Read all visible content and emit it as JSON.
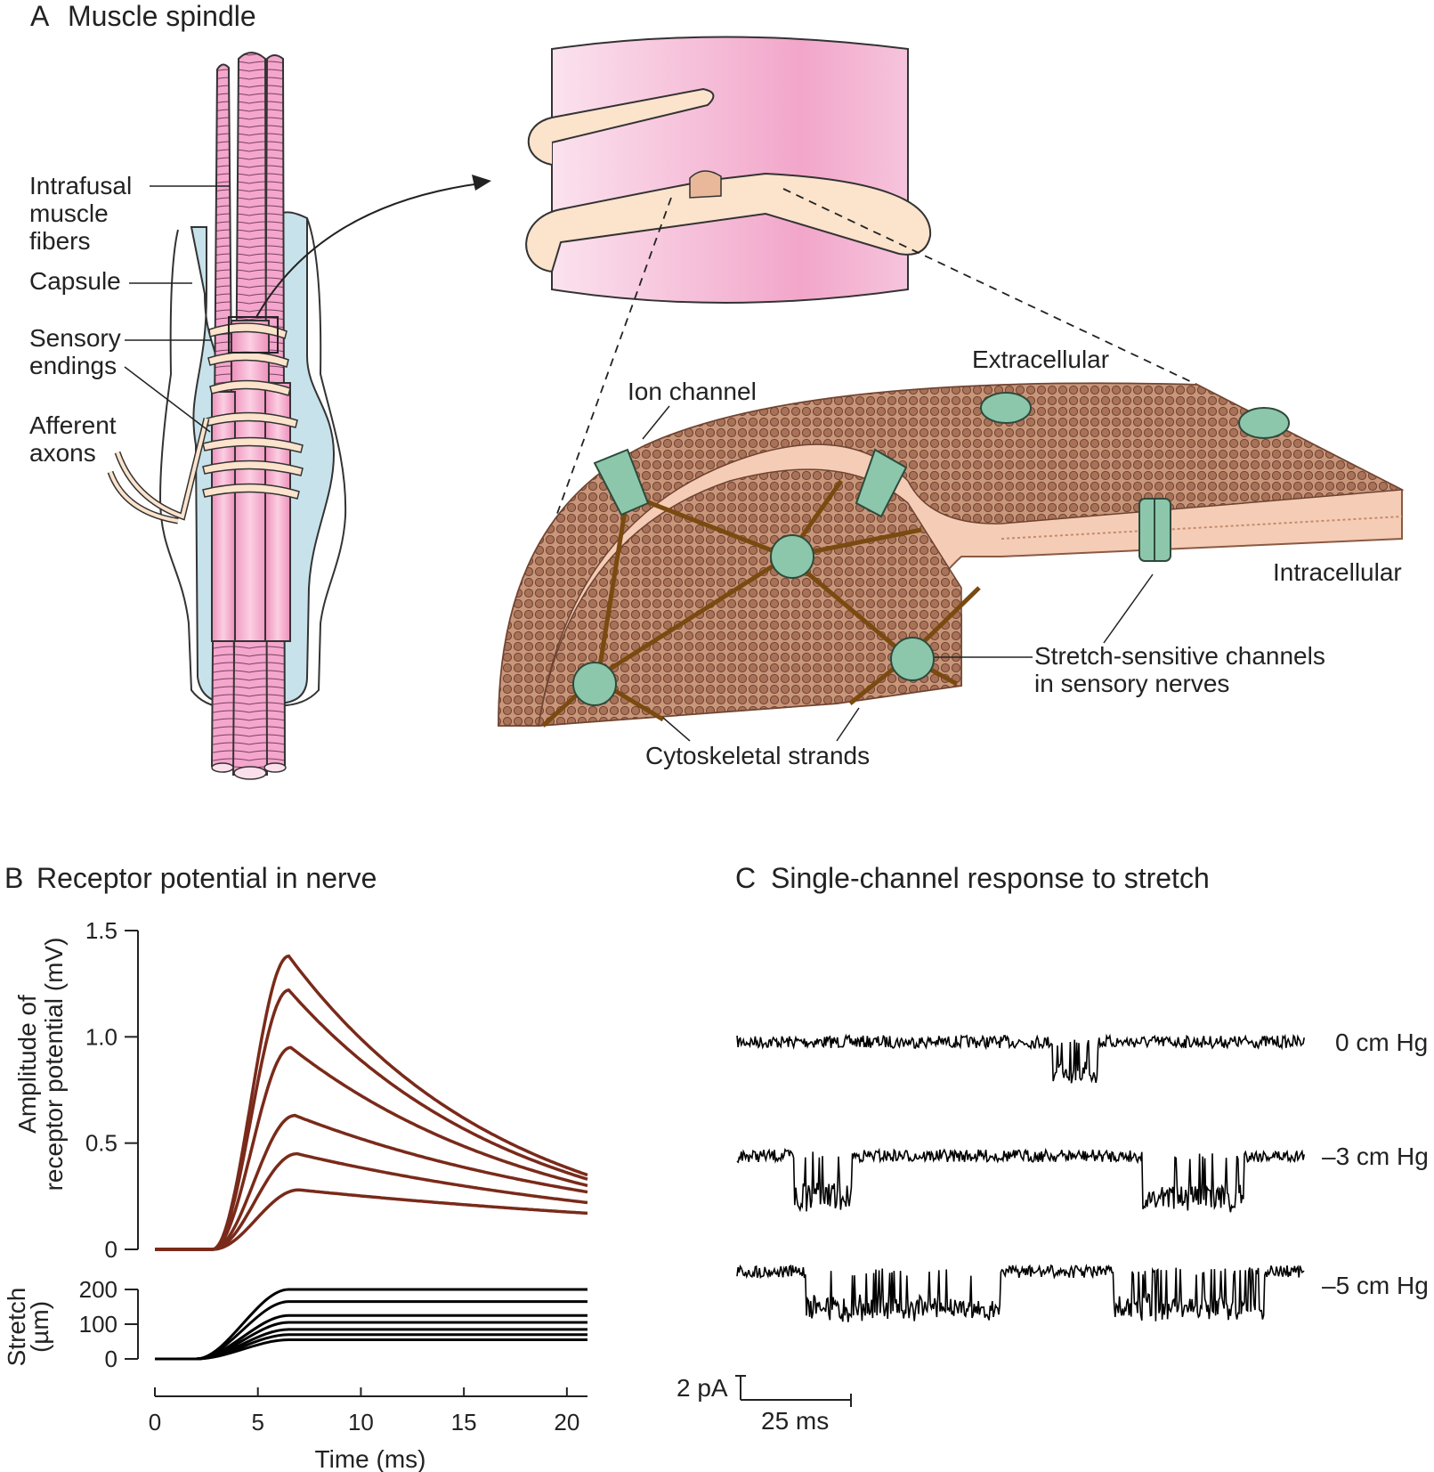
{
  "panelA": {
    "letter": "A",
    "title": "Muscle spindle",
    "labels": {
      "intrafusal_1": "Intrafusal",
      "intrafusal_2": "muscle",
      "intrafusal_3": "fibers",
      "capsule": "Capsule",
      "sensory_1": "Sensory",
      "sensory_2": "endings",
      "afferent_1": "Afferent",
      "afferent_2": "axons",
      "extracellular": "Extracellular",
      "ion_channel": "Ion channel",
      "intracellular": "Intracellular",
      "stretch_channels_1": "Stretch-sensitive channels",
      "stretch_channels_2": "in sensory nerves",
      "cytoskeletal": "Cytoskeletal strands"
    },
    "colors": {
      "muscle_pink": "#f4a6cc",
      "capsule_blue": "#c7e2ea",
      "sensory_cream": "#fbe3cc",
      "channel_green": "#8cc7ab",
      "membrane_tan": "#c9967a",
      "cytoskeleton_brown": "#7a4a10"
    }
  },
  "panelB": {
    "letter": "B",
    "title": "Receptor potential in nerve",
    "y_label_1": "Amplitude of",
    "y_label_2": "receptor potential (mV)",
    "stretch_label_1": "Stretch",
    "stretch_label_2": "(µm)",
    "x_label": "Time (ms)",
    "y_ticks": [
      "0",
      "0.5",
      "1.0",
      "1.5"
    ],
    "stretch_ticks": [
      "0",
      "100",
      "200"
    ],
    "x_ticks": [
      "0",
      "5",
      "10",
      "15",
      "20"
    ]
  },
  "panelC": {
    "letter": "C",
    "title": "Single-channel response to stretch",
    "traces": [
      "0 cm Hg",
      "–3 cm Hg",
      "–5 cm Hg"
    ],
    "scale_current": "2 pA",
    "scale_time": "25 ms"
  },
  "chart_data": [
    {
      "type": "line",
      "title": "Receptor potential in nerve",
      "xlabel": "Time (ms)",
      "ylabel": "Amplitude of receptor potential (mV)",
      "xlim": [
        0,
        21
      ],
      "ylim": [
        0,
        1.5
      ],
      "color": "#7a2a1a",
      "series": [
        {
          "peak": 1.38,
          "peak_time": 6.5,
          "end_value": 0.35
        },
        {
          "peak": 1.22,
          "peak_time": 6.5,
          "end_value": 0.33
        },
        {
          "peak": 0.95,
          "peak_time": 6.6,
          "end_value": 0.3
        },
        {
          "peak": 0.63,
          "peak_time": 6.8,
          "end_value": 0.27
        },
        {
          "peak": 0.45,
          "peak_time": 6.9,
          "end_value": 0.22
        },
        {
          "peak": 0.28,
          "peak_time": 7.0,
          "end_value": 0.17
        }
      ]
    },
    {
      "type": "line",
      "ylabel": "Stretch (µm)",
      "xlabel": "Time (ms)",
      "xlim": [
        0,
        21
      ],
      "ylim": [
        0,
        200
      ],
      "color": "#000000",
      "ramp_start": 2.0,
      "ramp_end": 6.5,
      "series": [
        {
          "plateau": 200
        },
        {
          "plateau": 165
        },
        {
          "plateau": 125
        },
        {
          "plateau": 105
        },
        {
          "plateau": 85
        },
        {
          "plateau": 70
        },
        {
          "plateau": 55
        }
      ]
    }
  ]
}
